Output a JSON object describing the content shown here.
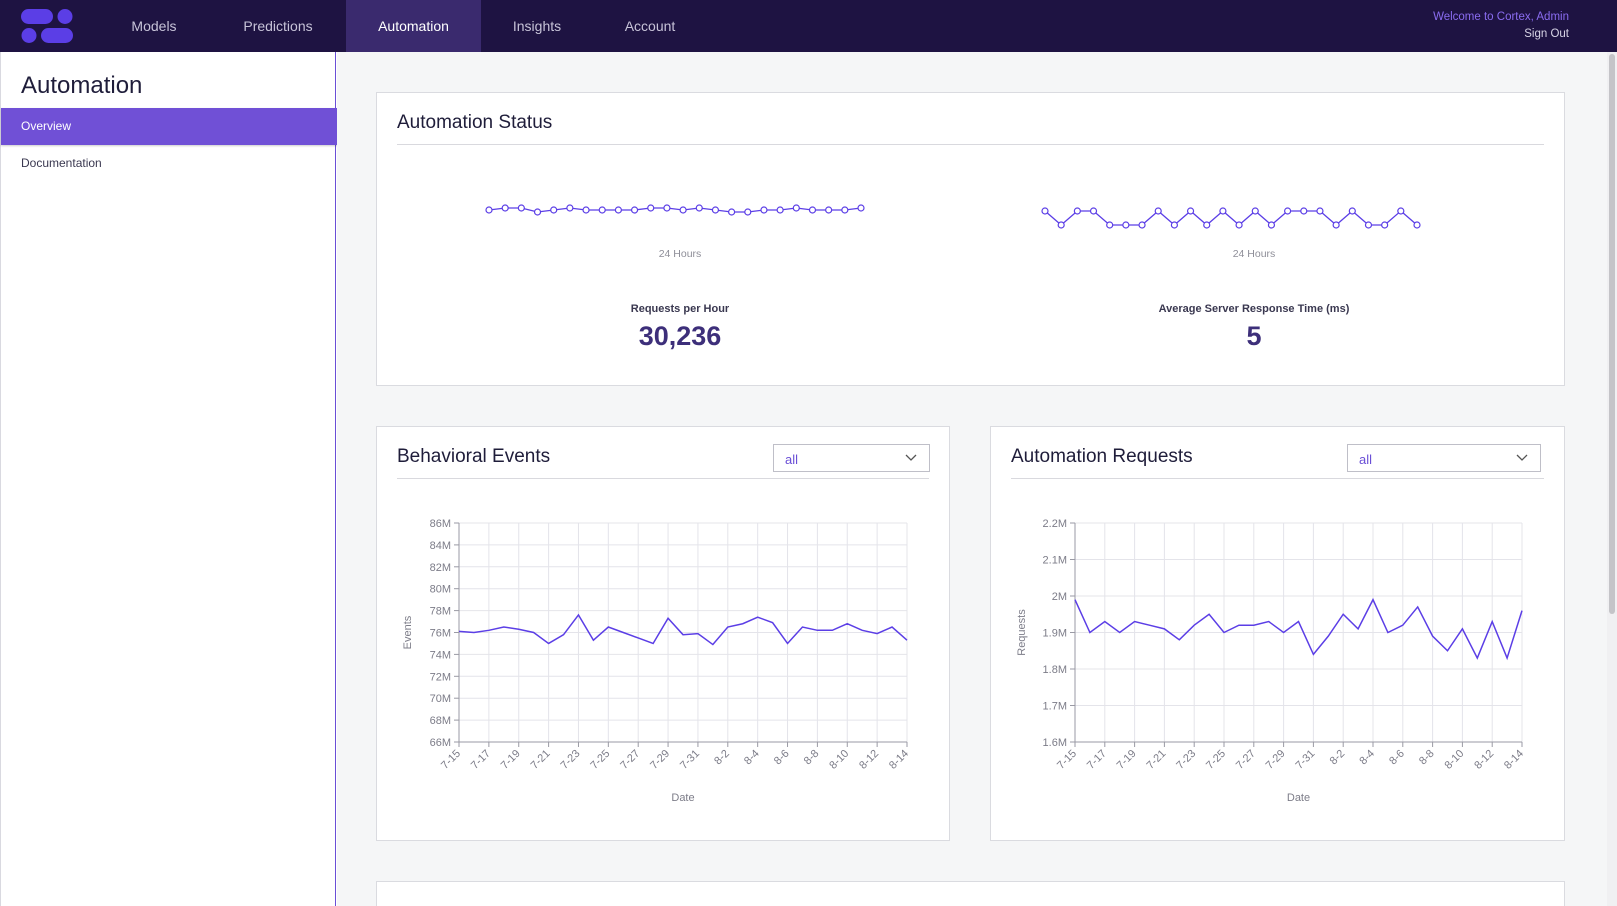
{
  "nav": {
    "items": [
      {
        "label": "Models",
        "active": false
      },
      {
        "label": "Predictions",
        "active": false
      },
      {
        "label": "Automation",
        "active": true
      },
      {
        "label": "Insights",
        "active": false
      },
      {
        "label": "Account",
        "active": false
      }
    ],
    "welcome": "Welcome to Cortex, Admin",
    "sign_out": "Sign Out"
  },
  "sidebar": {
    "title": "Automation",
    "items": [
      {
        "label": "Overview",
        "active": true
      },
      {
        "label": "Documentation",
        "active": false
      }
    ]
  },
  "status": {
    "title": "Automation Status",
    "stats": [
      {
        "caption": "24 Hours",
        "label": "Requests per Hour",
        "value": "30,236"
      },
      {
        "caption": "24 Hours",
        "label": "Average Server Response Time (ms)",
        "value": "5"
      }
    ]
  },
  "behavioral": {
    "title": "Behavioral Events",
    "filter": "all"
  },
  "requests": {
    "title": "Automation Requests",
    "filter": "all"
  },
  "colors": {
    "accent": "#6a4fd6",
    "nav_bg": "#1e1342",
    "line": "#5b3ee6"
  },
  "chart_data": [
    {
      "type": "line",
      "name": "requests-per-hour-sparkline",
      "values": [
        3,
        4,
        4,
        2,
        3,
        4,
        3,
        3,
        3,
        3,
        4,
        4,
        3,
        4,
        3,
        2,
        2,
        3,
        3,
        4,
        3,
        3,
        3,
        4
      ],
      "xlabel": "24 Hours",
      "markers": true
    },
    {
      "type": "line",
      "name": "response-time-sparkline",
      "values": [
        6,
        3,
        6,
        6,
        3,
        3,
        3,
        6,
        3,
        6,
        3,
        6,
        3,
        6,
        3,
        6,
        6,
        6,
        3,
        6,
        3,
        3,
        6,
        3
      ],
      "xlabel": "24 Hours",
      "markers": true
    },
    {
      "type": "line",
      "title": "Behavioral Events",
      "xlabel": "Date",
      "ylabel": "Events",
      "ylim": [
        66,
        86
      ],
      "yticks": [
        "66M",
        "68M",
        "70M",
        "72M",
        "74M",
        "76M",
        "78M",
        "80M",
        "82M",
        "84M",
        "86M"
      ],
      "xticks": [
        "7-15",
        "7-17",
        "7-19",
        "7-21",
        "7-23",
        "7-25",
        "7-27",
        "7-29",
        "7-31",
        "8-2",
        "8-4",
        "8-6",
        "8-8",
        "8-10",
        "8-12",
        "8-14"
      ],
      "grid": true,
      "values": [
        76.1,
        76.0,
        76.2,
        76.5,
        76.3,
        76.0,
        75.0,
        75.8,
        77.6,
        75.3,
        76.5,
        76.0,
        75.5,
        75.0,
        77.3,
        75.8,
        75.9,
        74.9,
        76.5,
        76.8,
        77.4,
        76.9,
        75.0,
        76.5,
        76.2,
        76.2,
        76.8,
        76.2,
        75.9,
        76.5,
        75.3
      ]
    },
    {
      "type": "line",
      "title": "Automation Requests",
      "xlabel": "Date",
      "ylabel": "Requests",
      "ylim": [
        1.6,
        2.2
      ],
      "yticks": [
        "1.6M",
        "1.7M",
        "1.8M",
        "1.9M",
        "2M",
        "2.1M",
        "2.2M"
      ],
      "xticks": [
        "7-15",
        "7-17",
        "7-19",
        "7-21",
        "7-23",
        "7-25",
        "7-27",
        "7-29",
        "7-31",
        "8-2",
        "8-4",
        "8-6",
        "8-8",
        "8-10",
        "8-12",
        "8-14"
      ],
      "grid": true,
      "values": [
        1.99,
        1.9,
        1.93,
        1.9,
        1.93,
        1.92,
        1.91,
        1.88,
        1.92,
        1.95,
        1.9,
        1.92,
        1.92,
        1.93,
        1.9,
        1.93,
        1.84,
        1.89,
        1.95,
        1.91,
        1.99,
        1.9,
        1.92,
        1.97,
        1.89,
        1.85,
        1.91,
        1.83,
        1.93,
        1.83,
        1.96
      ]
    }
  ]
}
